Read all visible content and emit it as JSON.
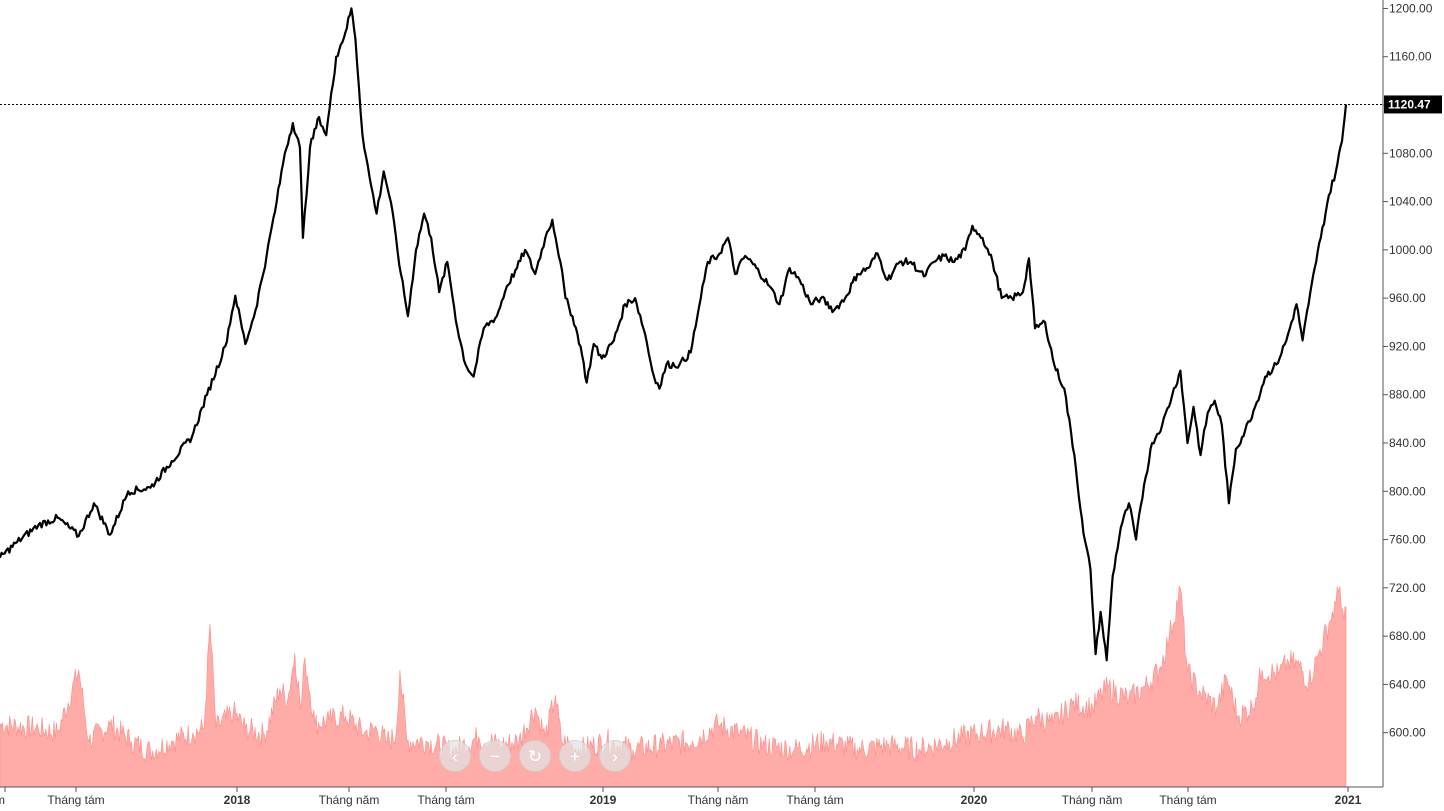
{
  "chart_data": {
    "type": "line",
    "title": "",
    "xlabel": "",
    "ylabel": "",
    "y_ticks": [
      "1200.00",
      "1160.00",
      "1120.00",
      "1080.00",
      "1040.00",
      "1000.00",
      "960.00",
      "920.00",
      "880.00",
      "840.00",
      "800.00",
      "760.00",
      "720.00",
      "680.00",
      "640.00",
      "600.00"
    ],
    "x_ticks": [
      {
        "label": "ám",
        "bold": false
      },
      {
        "label": "Tháng tám",
        "bold": false
      },
      {
        "label": "2018",
        "bold": true
      },
      {
        "label": "Tháng năm",
        "bold": false
      },
      {
        "label": "Tháng tám",
        "bold": false
      },
      {
        "label": "2019",
        "bold": true
      },
      {
        "label": "Tháng năm",
        "bold": false
      },
      {
        "label": "Tháng tám",
        "bold": false
      },
      {
        "label": "2020",
        "bold": true
      },
      {
        "label": "Tháng năm",
        "bold": false
      },
      {
        "label": "Tháng tám",
        "bold": false
      },
      {
        "label": "2021",
        "bold": true
      }
    ],
    "last_price_label": "1120.47",
    "ylim": [
      555,
      1207
    ],
    "price_series": {
      "color": "#000000",
      "points": [
        [
          "2017-05-24",
          745
        ],
        [
          "2017-06-10",
          758
        ],
        [
          "2017-07-01",
          772
        ],
        [
          "2017-07-20",
          778
        ],
        [
          "2017-08-10",
          763
        ],
        [
          "2017-08-25",
          790
        ],
        [
          "2017-09-10",
          764
        ],
        [
          "2017-09-28",
          800
        ],
        [
          "2017-10-20",
          803
        ],
        [
          "2017-11-10",
          825
        ],
        [
          "2017-11-30",
          845
        ],
        [
          "2017-12-15",
          880
        ],
        [
          "2018-01-02",
          920
        ],
        [
          "2018-01-12",
          962
        ],
        [
          "2018-01-22",
          922
        ],
        [
          "2018-02-01",
          950
        ],
        [
          "2018-02-12",
          995
        ],
        [
          "2018-02-22",
          1040
        ],
        [
          "2018-03-02",
          1080
        ],
        [
          "2018-03-10",
          1105
        ],
        [
          "2018-03-17",
          1085
        ],
        [
          "2018-03-20",
          1010
        ],
        [
          "2018-03-27",
          1085
        ],
        [
          "2018-04-05",
          1110
        ],
        [
          "2018-04-12",
          1095
        ],
        [
          "2018-04-22",
          1160
        ],
        [
          "2018-05-01",
          1180
        ],
        [
          "2018-05-07",
          1200
        ],
        [
          "2018-05-11",
          1175
        ],
        [
          "2018-05-18",
          1095
        ],
        [
          "2018-05-25",
          1060
        ],
        [
          "2018-06-01",
          1030
        ],
        [
          "2018-06-08",
          1065
        ],
        [
          "2018-06-15",
          1040
        ],
        [
          "2018-06-25",
          980
        ],
        [
          "2018-07-02",
          945
        ],
        [
          "2018-07-10",
          1000
        ],
        [
          "2018-07-18",
          1030
        ],
        [
          "2018-07-25",
          1010
        ],
        [
          "2018-08-02",
          965
        ],
        [
          "2018-08-10",
          990
        ],
        [
          "2018-08-20",
          935
        ],
        [
          "2018-08-28",
          905
        ],
        [
          "2018-09-05",
          895
        ],
        [
          "2018-09-15",
          935
        ],
        [
          "2018-09-28",
          945
        ],
        [
          "2018-10-08",
          970
        ],
        [
          "2018-10-18",
          985
        ],
        [
          "2018-10-26",
          1000
        ],
        [
          "2018-11-05",
          980
        ],
        [
          "2018-11-15",
          1010
        ],
        [
          "2018-11-22",
          1025
        ],
        [
          "2018-11-30",
          990
        ],
        [
          "2018-12-05",
          960
        ],
        [
          "2018-12-12",
          945
        ],
        [
          "2018-12-20",
          920
        ],
        [
          "2018-12-26",
          890
        ],
        [
          "2019-01-02",
          922
        ],
        [
          "2019-01-10",
          910
        ],
        [
          "2019-01-22",
          925
        ],
        [
          "2019-02-02",
          955
        ],
        [
          "2019-02-12",
          960
        ],
        [
          "2019-02-22",
          930
        ],
        [
          "2019-03-01",
          900
        ],
        [
          "2019-03-08",
          885
        ],
        [
          "2019-03-15",
          905
        ],
        [
          "2019-03-28",
          905
        ],
        [
          "2019-04-08",
          915
        ],
        [
          "2019-04-18",
          960
        ],
        [
          "2019-04-25",
          990
        ],
        [
          "2019-05-05",
          995
        ],
        [
          "2019-05-15",
          1010
        ],
        [
          "2019-05-22",
          980
        ],
        [
          "2019-06-01",
          995
        ],
        [
          "2019-06-12",
          985
        ],
        [
          "2019-06-25",
          970
        ],
        [
          "2019-07-05",
          955
        ],
        [
          "2019-07-15",
          985
        ],
        [
          "2019-07-25",
          975
        ],
        [
          "2019-08-05",
          955
        ],
        [
          "2019-08-15",
          960
        ],
        [
          "2019-08-28",
          950
        ],
        [
          "2019-09-08",
          960
        ],
        [
          "2019-09-20",
          980
        ],
        [
          "2019-10-01",
          985
        ],
        [
          "2019-10-10",
          997
        ],
        [
          "2019-10-20",
          975
        ],
        [
          "2019-11-01",
          990
        ],
        [
          "2019-11-12",
          990
        ],
        [
          "2019-11-25",
          978
        ],
        [
          "2019-12-05",
          990
        ],
        [
          "2019-12-15",
          995
        ],
        [
          "2019-12-25",
          990
        ],
        [
          "2020-01-05",
          1000
        ],
        [
          "2020-01-12",
          1020
        ],
        [
          "2020-01-22",
          1010
        ],
        [
          "2020-02-01",
          990
        ],
        [
          "2020-02-10",
          960
        ],
        [
          "2020-02-20",
          960
        ],
        [
          "2020-03-02",
          965
        ],
        [
          "2020-03-08",
          993
        ],
        [
          "2020-03-14",
          935
        ],
        [
          "2020-03-24",
          940
        ],
        [
          "2020-04-02",
          905
        ],
        [
          "2020-04-12",
          885
        ],
        [
          "2020-04-22",
          830
        ],
        [
          "2020-05-01",
          765
        ],
        [
          "2020-05-08",
          735
        ],
        [
          "2020-05-13",
          665
        ],
        [
          "2020-05-18",
          700
        ],
        [
          "2020-05-24",
          660
        ],
        [
          "2020-05-30",
          730
        ],
        [
          "2020-06-07",
          770
        ],
        [
          "2020-06-15",
          790
        ],
        [
          "2020-06-22",
          760
        ],
        [
          "2020-06-30",
          805
        ],
        [
          "2020-07-08",
          840
        ],
        [
          "2020-07-18",
          855
        ],
        [
          "2020-07-28",
          880
        ],
        [
          "2020-08-05",
          900
        ],
        [
          "2020-08-12",
          840
        ],
        [
          "2020-08-18",
          870
        ],
        [
          "2020-08-25",
          830
        ],
        [
          "2020-09-01",
          865
        ],
        [
          "2020-09-08",
          875
        ],
        [
          "2020-09-15",
          855
        ],
        [
          "2020-09-22",
          790
        ],
        [
          "2020-09-29",
          835
        ],
        [
          "2020-10-08",
          850
        ],
        [
          "2020-10-18",
          870
        ],
        [
          "2020-10-28",
          895
        ],
        [
          "2020-11-08",
          905
        ],
        [
          "2020-11-18",
          925
        ],
        [
          "2020-11-28",
          955
        ],
        [
          "2020-12-04",
          925
        ],
        [
          "2020-12-10",
          955
        ],
        [
          "2020-12-16",
          985
        ],
        [
          "2020-12-22",
          1010
        ],
        [
          "2020-12-30",
          1045
        ],
        [
          "2021-01-06",
          1065
        ],
        [
          "2021-01-12",
          1090
        ],
        [
          "2021-01-16",
          1120.47
        ]
      ]
    },
    "volume_series": {
      "color": "#ff9e99",
      "note": "volume histogram, relative scale",
      "points": [
        [
          "2017-05-24",
          0.3
        ],
        [
          "2017-07-01",
          0.28
        ],
        [
          "2017-07-20",
          0.26
        ],
        [
          "2017-08-10",
          0.56
        ],
        [
          "2017-08-20",
          0.22
        ],
        [
          "2017-09-10",
          0.3
        ],
        [
          "2017-10-01",
          0.22
        ],
        [
          "2017-10-20",
          0.17
        ],
        [
          "2017-11-10",
          0.22
        ],
        [
          "2017-12-01",
          0.26
        ],
        [
          "2017-12-12",
          0.28
        ],
        [
          "2017-12-18",
          0.78
        ],
        [
          "2017-12-24",
          0.28
        ],
        [
          "2018-01-10",
          0.36
        ],
        [
          "2018-01-22",
          0.28
        ],
        [
          "2018-02-10",
          0.25
        ],
        [
          "2018-02-25",
          0.47
        ],
        [
          "2018-03-05",
          0.42
        ],
        [
          "2018-03-12",
          0.64
        ],
        [
          "2018-03-18",
          0.37
        ],
        [
          "2018-03-22",
          0.62
        ],
        [
          "2018-04-01",
          0.3
        ],
        [
          "2018-04-15",
          0.32
        ],
        [
          "2018-05-01",
          0.34
        ],
        [
          "2018-05-20",
          0.26
        ],
        [
          "2018-06-01",
          0.28
        ],
        [
          "2018-06-10",
          0.22
        ],
        [
          "2018-06-20",
          0.24
        ],
        [
          "2018-06-24",
          0.56
        ],
        [
          "2018-07-01",
          0.22
        ],
        [
          "2018-07-20",
          0.22
        ],
        [
          "2018-08-15",
          0.17
        ],
        [
          "2018-09-10",
          0.24
        ],
        [
          "2018-10-01",
          0.2
        ],
        [
          "2018-10-20",
          0.22
        ],
        [
          "2018-11-05",
          0.38
        ],
        [
          "2018-11-15",
          0.24
        ],
        [
          "2018-11-25",
          0.44
        ],
        [
          "2018-12-01",
          0.22
        ],
        [
          "2018-12-20",
          0.18
        ],
        [
          "2019-01-15",
          0.22
        ],
        [
          "2019-02-10",
          0.18
        ],
        [
          "2019-03-10",
          0.2
        ],
        [
          "2019-04-10",
          0.22
        ],
        [
          "2019-05-05",
          0.3
        ],
        [
          "2019-05-25",
          0.26
        ],
        [
          "2019-06-20",
          0.2
        ],
        [
          "2019-07-20",
          0.18
        ],
        [
          "2019-08-20",
          0.22
        ],
        [
          "2019-09-20",
          0.18
        ],
        [
          "2019-10-20",
          0.2
        ],
        [
          "2019-11-20",
          0.18
        ],
        [
          "2019-12-20",
          0.22
        ],
        [
          "2020-01-20",
          0.26
        ],
        [
          "2020-02-15",
          0.28
        ],
        [
          "2020-03-01",
          0.24
        ],
        [
          "2020-03-15",
          0.34
        ],
        [
          "2020-04-01",
          0.3
        ],
        [
          "2020-04-20",
          0.4
        ],
        [
          "2020-05-10",
          0.38
        ],
        [
          "2020-05-25",
          0.48
        ],
        [
          "2020-06-15",
          0.42
        ],
        [
          "2020-07-01",
          0.48
        ],
        [
          "2020-07-15",
          0.56
        ],
        [
          "2020-07-25",
          0.72
        ],
        [
          "2020-08-05",
          0.95
        ],
        [
          "2020-08-12",
          0.55
        ],
        [
          "2020-08-25",
          0.45
        ],
        [
          "2020-09-10",
          0.38
        ],
        [
          "2020-09-20",
          0.52
        ],
        [
          "2020-10-01",
          0.34
        ],
        [
          "2020-10-15",
          0.38
        ],
        [
          "2020-10-25",
          0.56
        ],
        [
          "2020-11-10",
          0.54
        ],
        [
          "2020-11-20",
          0.6
        ],
        [
          "2020-12-01",
          0.58
        ],
        [
          "2020-12-10",
          0.5
        ],
        [
          "2020-12-20",
          0.64
        ],
        [
          "2020-12-30",
          0.78
        ],
        [
          "2021-01-06",
          0.88
        ],
        [
          "2021-01-10",
          0.96
        ],
        [
          "2021-01-14",
          0.8
        ],
        [
          "2021-01-16",
          0.86
        ]
      ]
    }
  },
  "nav_icons": [
    "chevron-left-icon",
    "minus-icon",
    "reset-icon",
    "plus-icon",
    "chevron-right-icon"
  ]
}
